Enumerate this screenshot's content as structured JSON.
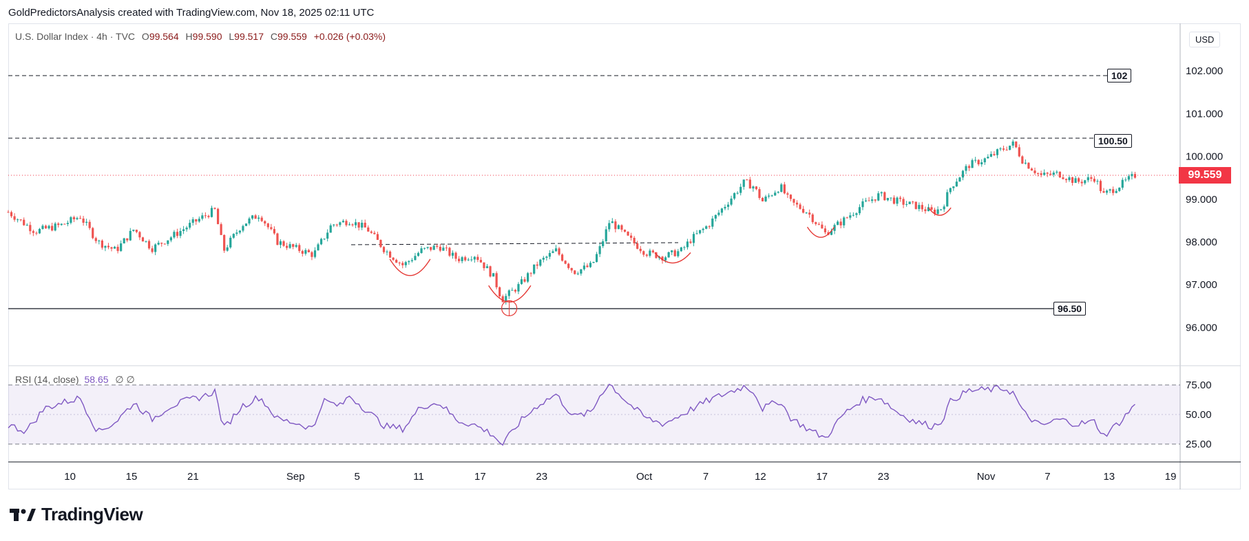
{
  "header": {
    "credit": "GoldPredictorsAnalysis created with TradingView.com, Nov 18, 2025 02:11 UTC"
  },
  "legend": {
    "symbol": "U.S. Dollar Index · 4h · TVC",
    "o_label": "O",
    "o": "99.564",
    "h_label": "H",
    "h": "99.590",
    "l_label": "L",
    "l": "99.517",
    "c_label": "C",
    "c": "99.559",
    "change": "+0.026 (+0.03%)"
  },
  "currency": "USD",
  "last_price": "99.559",
  "levels": {
    "top": "102",
    "upper": "100.50",
    "support": "96.50"
  },
  "rsi": {
    "label": "RSI (14, close)",
    "value": "58.65",
    "extra": "∅  ∅"
  },
  "brand": {
    "name": "TradingView"
  },
  "colors": {
    "up": "#26a69a",
    "down": "#ef5350",
    "rsi": "#7e57c2",
    "price_tag": "#f23645",
    "pattern": "#e53935"
  },
  "chart_data": {
    "type": "candlestick",
    "title": "U.S. Dollar Index · 4h · TVC",
    "y_ticks": [
      "102.000",
      "101.000",
      "100.000",
      "99.000",
      "98.000",
      "97.000",
      "96.000"
    ],
    "ylim": [
      95.0,
      102.6
    ],
    "x_ticks": [
      "10",
      "15",
      "21",
      "Sep",
      "5",
      "11",
      "17",
      "23",
      "Oct",
      "7",
      "12",
      "17",
      "23",
      "Nov",
      "7",
      "13",
      "19"
    ],
    "close_path": [
      {
        "d": 0,
        "v": 98.7
      },
      {
        "d": 3,
        "v": 98.25
      },
      {
        "d": 6,
        "v": 98.4
      },
      {
        "d": 8,
        "v": 98.6
      },
      {
        "d": 10,
        "v": 98.0
      },
      {
        "d": 12,
        "v": 97.8
      },
      {
        "d": 14,
        "v": 98.3
      },
      {
        "d": 16,
        "v": 97.85
      },
      {
        "d": 18,
        "v": 98.1
      },
      {
        "d": 21,
        "v": 98.5
      },
      {
        "d": 23,
        "v": 98.75
      },
      {
        "d": 24,
        "v": 97.8
      },
      {
        "d": 26,
        "v": 98.4
      },
      {
        "d": 28,
        "v": 98.65
      },
      {
        "d": 30,
        "v": 98.0
      },
      {
        "d": 32,
        "v": 97.85
      },
      {
        "d": 34,
        "v": 97.7
      },
      {
        "d": 36,
        "v": 98.4
      },
      {
        "d": 38,
        "v": 98.5
      },
      {
        "d": 40,
        "v": 98.3
      },
      {
        "d": 42,
        "v": 97.8
      },
      {
        "d": 44,
        "v": 97.45
      },
      {
        "d": 46,
        "v": 97.8
      },
      {
        "d": 48,
        "v": 97.9
      },
      {
        "d": 50,
        "v": 97.6
      },
      {
        "d": 52,
        "v": 97.7
      },
      {
        "d": 54,
        "v": 97.2
      },
      {
        "d": 55,
        "v": 96.65
      },
      {
        "d": 57,
        "v": 97.0
      },
      {
        "d": 59,
        "v": 97.5
      },
      {
        "d": 61,
        "v": 97.8
      },
      {
        "d": 63,
        "v": 97.3
      },
      {
        "d": 65,
        "v": 97.45
      },
      {
        "d": 66,
        "v": 97.9
      },
      {
        "d": 67,
        "v": 98.5
      },
      {
        "d": 69,
        "v": 98.1
      },
      {
        "d": 71,
        "v": 97.75
      },
      {
        "d": 73,
        "v": 97.65
      },
      {
        "d": 75,
        "v": 97.8
      },
      {
        "d": 76,
        "v": 98.05
      },
      {
        "d": 78,
        "v": 98.4
      },
      {
        "d": 80,
        "v": 98.9
      },
      {
        "d": 82,
        "v": 99.4
      },
      {
        "d": 83,
        "v": 99.3
      },
      {
        "d": 84,
        "v": 98.95
      },
      {
        "d": 86,
        "v": 99.3
      },
      {
        "d": 87,
        "v": 98.95
      },
      {
        "d": 89,
        "v": 98.7
      },
      {
        "d": 91,
        "v": 98.2
      },
      {
        "d": 93,
        "v": 98.5
      },
      {
        "d": 95,
        "v": 98.85
      },
      {
        "d": 97,
        "v": 99.1
      },
      {
        "d": 99,
        "v": 98.95
      },
      {
        "d": 101,
        "v": 98.85
      },
      {
        "d": 103,
        "v": 98.7
      },
      {
        "d": 104,
        "v": 98.8
      },
      {
        "d": 105,
        "v": 99.3
      },
      {
        "d": 107,
        "v": 99.8
      },
      {
        "d": 109,
        "v": 99.95
      },
      {
        "d": 111,
        "v": 100.2
      },
      {
        "d": 112,
        "v": 100.3
      },
      {
        "d": 113,
        "v": 99.9
      },
      {
        "d": 115,
        "v": 99.55
      },
      {
        "d": 117,
        "v": 99.6
      },
      {
        "d": 119,
        "v": 99.4
      },
      {
        "d": 121,
        "v": 99.5
      },
      {
        "d": 122,
        "v": 99.1
      },
      {
        "d": 124,
        "v": 99.35
      },
      {
        "d": 125.5,
        "v": 99.559
      }
    ],
    "rsi_series": [
      {
        "d": 0,
        "v": 41
      },
      {
        "d": 2,
        "v": 36
      },
      {
        "d": 4,
        "v": 55
      },
      {
        "d": 6,
        "v": 60
      },
      {
        "d": 8,
        "v": 64
      },
      {
        "d": 10,
        "v": 35
      },
      {
        "d": 12,
        "v": 44
      },
      {
        "d": 14,
        "v": 60
      },
      {
        "d": 16,
        "v": 46
      },
      {
        "d": 18,
        "v": 57
      },
      {
        "d": 20,
        "v": 62
      },
      {
        "d": 22,
        "v": 66
      },
      {
        "d": 23,
        "v": 70
      },
      {
        "d": 24,
        "v": 38
      },
      {
        "d": 26,
        "v": 57
      },
      {
        "d": 28,
        "v": 65
      },
      {
        "d": 30,
        "v": 46
      },
      {
        "d": 32,
        "v": 43
      },
      {
        "d": 34,
        "v": 38
      },
      {
        "d": 35,
        "v": 62
      },
      {
        "d": 37,
        "v": 57
      },
      {
        "d": 38,
        "v": 66
      },
      {
        "d": 40,
        "v": 53
      },
      {
        "d": 42,
        "v": 40
      },
      {
        "d": 44,
        "v": 38
      },
      {
        "d": 46,
        "v": 57
      },
      {
        "d": 48,
        "v": 60
      },
      {
        "d": 50,
        "v": 45
      },
      {
        "d": 52,
        "v": 41
      },
      {
        "d": 54,
        "v": 33
      },
      {
        "d": 55,
        "v": 24
      },
      {
        "d": 57,
        "v": 44
      },
      {
        "d": 59,
        "v": 58
      },
      {
        "d": 61,
        "v": 67
      },
      {
        "d": 63,
        "v": 48
      },
      {
        "d": 65,
        "v": 52
      },
      {
        "d": 66,
        "v": 68
      },
      {
        "d": 67,
        "v": 76
      },
      {
        "d": 69,
        "v": 60
      },
      {
        "d": 71,
        "v": 47
      },
      {
        "d": 73,
        "v": 42
      },
      {
        "d": 75,
        "v": 50
      },
      {
        "d": 76,
        "v": 54
      },
      {
        "d": 78,
        "v": 62
      },
      {
        "d": 80,
        "v": 68
      },
      {
        "d": 82,
        "v": 74
      },
      {
        "d": 83,
        "v": 70
      },
      {
        "d": 84,
        "v": 55
      },
      {
        "d": 86,
        "v": 62
      },
      {
        "d": 87,
        "v": 48
      },
      {
        "d": 89,
        "v": 38
      },
      {
        "d": 91,
        "v": 30
      },
      {
        "d": 93,
        "v": 50
      },
      {
        "d": 95,
        "v": 62
      },
      {
        "d": 97,
        "v": 65
      },
      {
        "d": 99,
        "v": 52
      },
      {
        "d": 101,
        "v": 44
      },
      {
        "d": 103,
        "v": 40
      },
      {
        "d": 104,
        "v": 45
      },
      {
        "d": 105,
        "v": 62
      },
      {
        "d": 107,
        "v": 70
      },
      {
        "d": 109,
        "v": 71
      },
      {
        "d": 111,
        "v": 72
      },
      {
        "d": 112,
        "v": 68
      },
      {
        "d": 113,
        "v": 52
      },
      {
        "d": 115,
        "v": 40
      },
      {
        "d": 117,
        "v": 46
      },
      {
        "d": 119,
        "v": 42
      },
      {
        "d": 121,
        "v": 44
      },
      {
        "d": 122,
        "v": 32
      },
      {
        "d": 124,
        "v": 45
      },
      {
        "d": 125.5,
        "v": 58.65
      }
    ],
    "rsi_ticks": [
      "75.00",
      "50.00",
      "25.00"
    ],
    "rsi_ylim": [
      18,
      81
    ]
  }
}
